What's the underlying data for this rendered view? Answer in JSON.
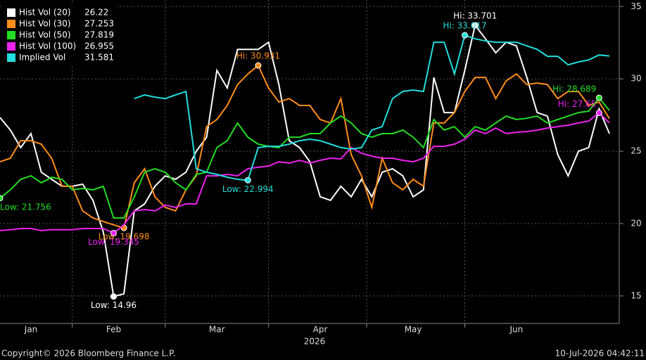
{
  "chart_data": {
    "type": "line",
    "xlabel": "2026",
    "footer_left": "Copyright© 2026 Bloomberg Finance L.P.",
    "footer_right": "10-Jul-2026 04:42:11",
    "categories": [
      null,
      null,
      null,
      "Jan",
      null,
      null,
      null,
      null,
      null,
      null,
      null,
      "Feb",
      null,
      null,
      null,
      null,
      null,
      null,
      null,
      null,
      null,
      "Mar",
      null,
      null,
      null,
      null,
      null,
      null,
      null,
      null,
      null,
      "Apr",
      null,
      null,
      null,
      null,
      null,
      null,
      null,
      null,
      "May",
      null,
      null,
      null,
      null,
      null,
      null,
      null,
      null,
      null,
      "Jun",
      null,
      null,
      null,
      null,
      null,
      null,
      null,
      null,
      null
    ],
    "ylim": [
      13.1,
      35.45
    ],
    "yticks": [
      15,
      20,
      25,
      30,
      35
    ],
    "grid": true,
    "legend": "top-left",
    "series": [
      {
        "name": "Hist Vol (20)",
        "color": "#ffffff",
        "values": [
          27.33,
          26.46,
          25.25,
          26.22,
          23.55,
          23.06,
          22.58,
          22.58,
          22.72,
          21.61,
          19.42,
          14.96,
          15.15,
          20.88,
          21.36,
          22.58,
          23.3,
          23.06,
          23.55,
          25.0,
          25.97,
          30.59,
          29.37,
          32.04,
          32.04,
          32.04,
          32.53,
          29.61,
          25.73,
          25.25,
          24.27,
          21.85,
          21.61,
          22.58,
          21.85,
          23.06,
          21.85,
          23.55,
          23.79,
          23.3,
          21.85,
          22.33,
          30.1,
          27.67,
          27.67,
          30.59,
          33.701,
          32.77,
          31.8,
          32.53,
          32.28,
          30.1,
          27.67,
          27.43,
          24.76,
          23.3,
          25.0,
          25.25,
          27.92,
          26.22
        ],
        "value_labels": [
          null,
          null,
          null,
          null,
          null,
          null,
          null,
          null,
          null,
          null,
          null,
          "Low: 14.96",
          null,
          null,
          null,
          null,
          null,
          null,
          null,
          null,
          null,
          null,
          null,
          null,
          null,
          null,
          null,
          null,
          null,
          null,
          null,
          null,
          null,
          null,
          null,
          null,
          null,
          null,
          null,
          null,
          null,
          null,
          null,
          null,
          null,
          null,
          "Hi: 33.701",
          null,
          null,
          null,
          null,
          null,
          null,
          null,
          null,
          null,
          null,
          null,
          null,
          null
        ]
      },
      {
        "name": "Hist Vol (30)",
        "color": "#ff8c1a",
        "values": [
          24.27,
          24.52,
          25.73,
          25.73,
          25.49,
          24.52,
          22.58,
          22.58,
          20.88,
          20.39,
          20.15,
          19.91,
          19.698,
          22.82,
          23.79,
          21.85,
          21.12,
          20.88,
          22.33,
          23.3,
          26.7,
          27.19,
          28.16,
          29.61,
          30.34,
          30.931,
          29.37,
          28.4,
          28.64,
          28.16,
          28.16,
          27.19,
          26.95,
          28.64,
          24.76,
          23.3,
          21.12,
          24.52,
          22.82,
          22.33,
          23.06,
          22.58,
          26.95,
          26.95,
          27.67,
          29.13,
          30.1,
          30.1,
          28.64,
          29.86,
          30.34,
          29.61,
          29.71,
          29.61,
          28.64,
          29.13,
          29.13,
          28.16,
          28.4,
          27.253
        ],
        "value_labels": [
          null,
          null,
          null,
          null,
          null,
          null,
          null,
          null,
          null,
          null,
          null,
          null,
          "Low: 19.698",
          null,
          null,
          null,
          null,
          null,
          null,
          null,
          null,
          null,
          null,
          null,
          null,
          "Hi: 30.931",
          null,
          null,
          null,
          null,
          null,
          null,
          null,
          null,
          null,
          null,
          null,
          null,
          null,
          null,
          null,
          null,
          null,
          null,
          null,
          null,
          null,
          null,
          null,
          null,
          null,
          null,
          null,
          null,
          null,
          null,
          null,
          null,
          null,
          null
        ]
      },
      {
        "name": "Hist Vol (50)",
        "color": "#22dd22",
        "values": [
          21.756,
          22.33,
          23.06,
          23.3,
          22.82,
          23.2,
          23.06,
          22.33,
          22.43,
          22.33,
          22.58,
          20.39,
          20.39,
          21.85,
          23.55,
          23.79,
          23.55,
          22.82,
          22.33,
          23.4,
          23.55,
          25.25,
          25.73,
          26.95,
          25.97,
          25.49,
          25.34,
          25.25,
          25.97,
          25.97,
          26.22,
          26.22,
          26.95,
          27.43,
          26.95,
          26.22,
          25.97,
          26.22,
          26.22,
          26.46,
          25.97,
          25.25,
          27.19,
          26.46,
          26.7,
          25.97,
          26.7,
          26.46,
          26.95,
          27.43,
          27.19,
          27.28,
          27.43,
          26.95,
          27.19,
          27.43,
          27.67,
          27.77,
          28.689,
          27.819
        ],
        "value_labels": [
          "Low: 21.756",
          null,
          null,
          null,
          null,
          null,
          null,
          null,
          null,
          null,
          null,
          null,
          null,
          null,
          null,
          null,
          null,
          null,
          null,
          null,
          null,
          null,
          null,
          null,
          null,
          null,
          null,
          null,
          null,
          null,
          null,
          null,
          null,
          null,
          null,
          null,
          null,
          null,
          null,
          null,
          null,
          null,
          null,
          null,
          null,
          null,
          null,
          null,
          null,
          null,
          null,
          null,
          null,
          null,
          null,
          null,
          null,
          null,
          "Hi: 28.689",
          null
        ]
      },
      {
        "name": "Hist Vol (100)",
        "color": "#ee22ee",
        "values": [
          19.52,
          19.57,
          19.66,
          19.66,
          19.52,
          19.57,
          19.57,
          19.57,
          19.66,
          19.66,
          19.66,
          19.345,
          19.91,
          20.88,
          20.97,
          20.88,
          21.27,
          21.12,
          21.36,
          21.36,
          23.3,
          23.3,
          23.4,
          23.3,
          23.79,
          23.89,
          23.98,
          24.27,
          24.18,
          24.37,
          24.18,
          24.37,
          24.52,
          24.47,
          25.25,
          24.86,
          24.66,
          24.52,
          24.52,
          24.37,
          24.27,
          24.52,
          25.34,
          25.34,
          25.49,
          25.83,
          26.46,
          26.22,
          26.6,
          26.22,
          26.31,
          26.36,
          26.46,
          26.6,
          26.7,
          26.8,
          26.95,
          27.09,
          27.65,
          26.955
        ],
        "value_labels": [
          null,
          null,
          null,
          null,
          null,
          null,
          null,
          null,
          null,
          null,
          null,
          "Low: 19.345",
          null,
          null,
          null,
          null,
          null,
          null,
          null,
          null,
          null,
          null,
          null,
          null,
          null,
          null,
          null,
          null,
          null,
          null,
          null,
          null,
          null,
          null,
          null,
          null,
          null,
          null,
          null,
          null,
          null,
          null,
          null,
          null,
          null,
          null,
          null,
          null,
          null,
          null,
          null,
          null,
          null,
          null,
          null,
          null,
          null,
          null,
          "Hi: 27.65",
          null
        ]
      },
      {
        "name": "Implied Vol",
        "color": "#22dddd",
        "values": [
          null,
          null,
          null,
          null,
          null,
          null,
          null,
          null,
          null,
          null,
          null,
          null,
          null,
          28.64,
          28.89,
          28.74,
          28.64,
          28.89,
          29.13,
          23.79,
          23.55,
          23.4,
          23.2,
          23.06,
          22.994,
          25.25,
          25.34,
          25.34,
          25.49,
          25.73,
          25.83,
          25.73,
          25.49,
          25.25,
          25.15,
          25.25,
          26.46,
          26.7,
          28.64,
          29.13,
          29.23,
          29.13,
          32.53,
          32.53,
          30.34,
          33.017,
          32.77,
          32.62,
          32.53,
          32.53,
          32.53,
          32.28,
          32.04,
          31.56,
          31.56,
          30.97,
          31.17,
          31.31,
          31.65,
          31.581
        ],
        "value_labels": [
          null,
          null,
          null,
          null,
          null,
          null,
          null,
          null,
          null,
          null,
          null,
          null,
          null,
          null,
          null,
          null,
          null,
          null,
          null,
          null,
          null,
          null,
          null,
          null,
          "Low: 22.994",
          null,
          null,
          null,
          null,
          null,
          null,
          null,
          null,
          null,
          null,
          null,
          null,
          null,
          null,
          null,
          null,
          null,
          null,
          null,
          null,
          "Hi: 33.017",
          null,
          null,
          null,
          null,
          null,
          null,
          null,
          null,
          null,
          null,
          null,
          null,
          null,
          null
        ]
      }
    ]
  }
}
